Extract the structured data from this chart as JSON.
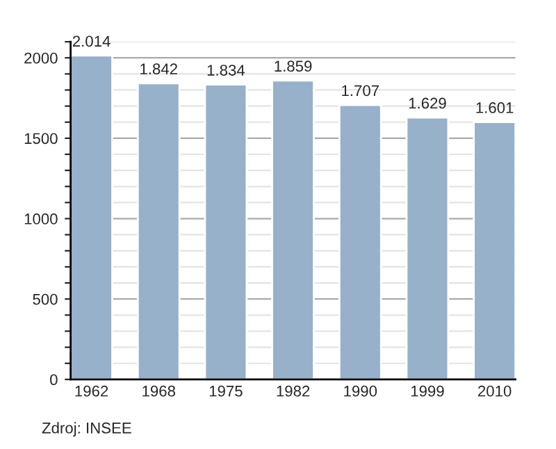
{
  "chart_data": {
    "type": "bar",
    "categories": [
      "1962",
      "1968",
      "1975",
      "1982",
      "1990",
      "1999",
      "2010"
    ],
    "values": [
      2014,
      1842,
      1834,
      1859,
      1707,
      1629,
      1601
    ],
    "value_labels": [
      "2.014",
      "1.842",
      "1.834",
      "1.859",
      "1.707",
      "1.629",
      "1.601"
    ],
    "color": "#97b1cb",
    "ylim": [
      0,
      2100
    ],
    "yticks": [
      0,
      {
        "value": 100,
        "label": null
      },
      {
        "value": 200,
        "label": null
      },
      {
        "value": 300,
        "label": null
      },
      {
        "value": 400,
        "label": null
      },
      500,
      {
        "value": 600,
        "label": null
      },
      {
        "value": 700,
        "label": null
      },
      {
        "value": 800,
        "label": null
      },
      {
        "value": 900,
        "label": null
      },
      1000,
      {
        "value": 1100,
        "label": null
      },
      {
        "value": 1200,
        "label": null
      },
      {
        "value": 1300,
        "label": null
      },
      {
        "value": 1400,
        "label": null
      },
      1500,
      {
        "value": 1600,
        "label": null
      },
      {
        "value": 1700,
        "label": null
      },
      {
        "value": 1800,
        "label": null
      },
      {
        "value": 1900,
        "label": null
      },
      2000,
      {
        "value": 2100,
        "label": null
      }
    ],
    "grid": "y",
    "annotations": [
      "Zdroj: INSEE"
    ]
  }
}
